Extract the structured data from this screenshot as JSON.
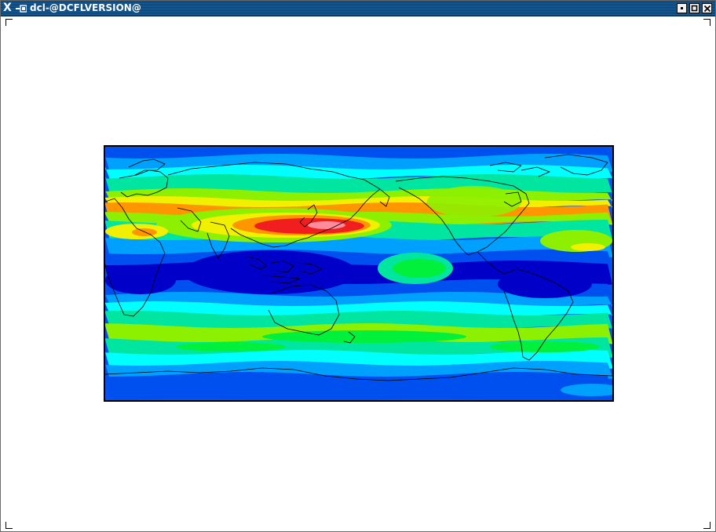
{
  "window": {
    "title": "dcl-@DCFLVERSION@",
    "app_icon": "x-logo-icon",
    "menu_icon": "window-menu-icon",
    "buttons": [
      {
        "name": "minimize",
        "icon": "minimize-icon"
      },
      {
        "name": "maximize",
        "icon": "maximize-icon"
      },
      {
        "name": "close",
        "icon": "close-icon"
      }
    ]
  },
  "colors": {
    "deep_blue": "#0000c8",
    "blue": "#0050f0",
    "light_blue": "#00a0ff",
    "cyan": "#00ffff",
    "aqua_green": "#00e6a0",
    "green": "#00f03c",
    "light_green": "#8cf000",
    "yellow": "#f0f000",
    "orange": "#ff9600",
    "red": "#f01e1e",
    "pink": "#ff8c9b",
    "coastline": "#000000"
  },
  "plot": {
    "type": "filled contour map",
    "projection": "cylindrical equidistant",
    "central_meridian": "180"
  }
}
